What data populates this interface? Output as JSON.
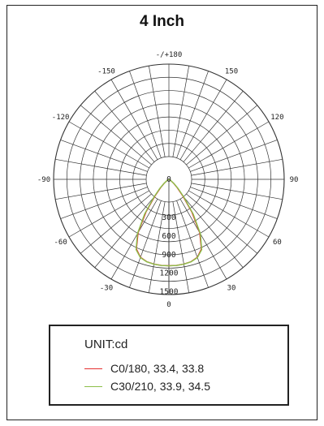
{
  "title": "4 Inch",
  "chart_data": {
    "type": "polar",
    "title": "4 Inch",
    "unit_label": "UNIT:cd",
    "angle_ticks": [
      {
        "deg": 180,
        "label": "-/+180"
      },
      {
        "deg": 150,
        "label": "150"
      },
      {
        "deg": 120,
        "label": "120"
      },
      {
        "deg": 90,
        "label": "90"
      },
      {
        "deg": 60,
        "label": "60"
      },
      {
        "deg": 30,
        "label": "30"
      },
      {
        "deg": 0,
        "label": "0"
      },
      {
        "deg": -30,
        "label": "-30"
      },
      {
        "deg": -60,
        "label": "-60"
      },
      {
        "deg": -90,
        "label": "-90"
      },
      {
        "deg": -120,
        "label": "-120"
      },
      {
        "deg": -150,
        "label": "-150"
      }
    ],
    "radial_ticks": [
      "0",
      "300",
      "600",
      "900",
      "1200",
      "1500"
    ],
    "r_max": 1500,
    "series": [
      {
        "name": "C0/180, 33.4, 33.8",
        "color": "#e53030",
        "angles": [
          -90,
          -75,
          -60,
          -50,
          -45,
          -40,
          -35,
          -30,
          -25,
          -20,
          -15,
          -10,
          -5,
          0,
          5,
          10,
          15,
          20,
          25,
          30,
          35,
          40,
          45,
          50,
          60,
          75,
          90
        ],
        "values": [
          0,
          5,
          20,
          80,
          150,
          280,
          520,
          800,
          1000,
          1080,
          1110,
          1120,
          1125,
          1125,
          1125,
          1120,
          1110,
          1080,
          1000,
          800,
          520,
          280,
          150,
          80,
          20,
          5,
          0
        ]
      },
      {
        "name": "C30/210, 33.9, 34.5",
        "color": "#8cbf4a",
        "angles": [
          -90,
          -75,
          -60,
          -50,
          -45,
          -40,
          -35,
          -30,
          -25,
          -20,
          -15,
          -10,
          -5,
          0,
          5,
          10,
          15,
          20,
          25,
          30,
          35,
          40,
          45,
          50,
          60,
          75,
          90
        ],
        "values": [
          0,
          5,
          25,
          90,
          170,
          300,
          550,
          820,
          1010,
          1085,
          1112,
          1122,
          1126,
          1126,
          1126,
          1122,
          1112,
          1085,
          1010,
          820,
          550,
          300,
          170,
          90,
          25,
          5,
          0
        ]
      }
    ]
  }
}
